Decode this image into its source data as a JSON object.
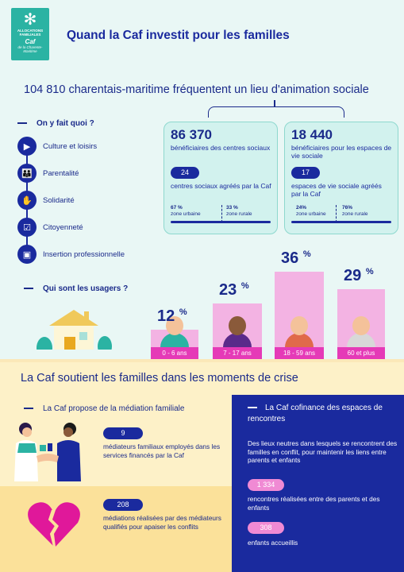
{
  "logo": {
    "line1": "ALLOCATIONS FAMILIALES",
    "line2": "Caf",
    "line3": "de la Charente-Maritime"
  },
  "title": "Quand la Caf investit pour les familles",
  "headline": "104 810 charentais-maritime fréquentent un lieu d'animation sociale",
  "activities": {
    "label": "On y fait quoi ?",
    "items": [
      {
        "label": "Culture et loisirs",
        "icon": "screen-icon"
      },
      {
        "label": "Parentalité",
        "icon": "family-icon"
      },
      {
        "label": "Solidarité",
        "icon": "hands-icon"
      },
      {
        "label": "Citoyenneté",
        "icon": "ballot-box-icon"
      },
      {
        "label": "Insertion professionnelle",
        "icon": "briefcase-icon"
      }
    ]
  },
  "cards": [
    {
      "big": "86 370",
      "desc": "bénéficiaires des centres sociaux",
      "pill": "24",
      "desc2": "centres sociaux agréés par la Caf",
      "urban_pct": "67 %",
      "urban_label": "zone urbaine",
      "rural_pct": "33 %",
      "rural_label": "zone rurale"
    },
    {
      "big": "18 440",
      "desc": "bénéficiaires pour les espaces de vie sociale",
      "pill": "17",
      "desc2": "espaces de vie sociale agréés par la Caf",
      "urban_pct": "24%",
      "urban_label": "zone urbaine",
      "rural_pct": "76%",
      "rural_label": "zone rurale"
    }
  ],
  "users": {
    "label": "Qui sont les usagers ?",
    "groups": [
      {
        "pct": "12",
        "unit": "%",
        "age": "0 - 6 ans",
        "share": 12
      },
      {
        "pct": "23",
        "unit": "%",
        "age": "7 - 17 ans",
        "share": 23
      },
      {
        "pct": "36",
        "unit": "%",
        "age": "18 - 59 ans",
        "share": 36
      },
      {
        "pct": "29",
        "unit": "%",
        "age": "60 et plus",
        "share": 29
      }
    ]
  },
  "crisis": {
    "title": "La Caf soutient les familles dans les moments de crise",
    "mediation": {
      "label": "La Caf propose de la médiation familiale",
      "stat1": {
        "value": "9",
        "text": "médiateurs familiaux employés dans les services financés par la Caf"
      },
      "stat2": {
        "value": "208",
        "text": "médiations réalisées par des médiateurs qualifiés pour apaiser les conflits"
      }
    },
    "meetings": {
      "title": "La Caf cofinance des espaces de rencontres",
      "intro": "Des lieux neutres dans lesquels se rencontrent des familles en conflit, pour maintenir les liens entre parents et enfants",
      "stat1": {
        "value": "1 334",
        "text": "rencontres réalisées entre des parents et des enfants"
      },
      "stat2": {
        "value": "308",
        "text": "enfants accueillis"
      }
    }
  },
  "colors": {
    "navy": "#1a2a9e",
    "teal": "#2bb3a3",
    "pink": "#e53ab7",
    "light_pink": "#f3b3e3",
    "mint": "#e9f7f5",
    "cream": "#fdf1c8"
  }
}
